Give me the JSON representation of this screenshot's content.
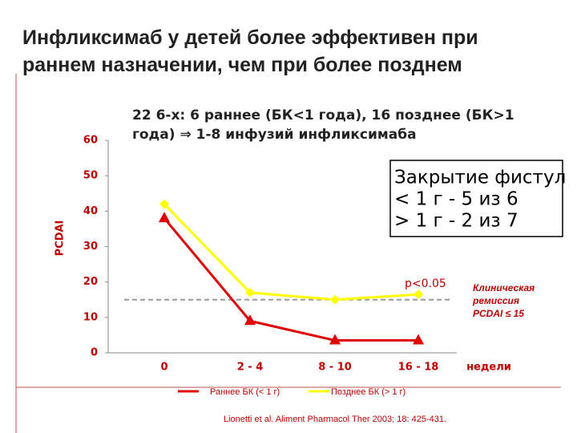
{
  "title": "Инфликсимаб у детей более эффективен при раннем назначении, чем при более позднем",
  "chart_data": {
    "type": "line",
    "subtitle": [
      "22 6-х: 6 раннее (БК<1 года), 16 позднее (БК>1",
      "года) ⇒ 1-8 инфузий инфликсимаба"
    ],
    "box_text": [
      "Закрытие фистул",
      "< 1 г  - 5 из 6",
      "> 1 г  - 2 из 7"
    ],
    "annotation": "p<0.05",
    "threshold_note": [
      "Клиническая",
      "ремиссия",
      "PCDAI ≤ 15"
    ],
    "threshold": 15,
    "y_label": "PCDAI",
    "x_label": "недели",
    "categories": [
      "0",
      "2 - 4",
      "8 - 10",
      "16 - 18"
    ],
    "series": [
      {
        "name": "Раннее БК (< 1 г)",
        "color": "#e00000",
        "values": [
          38,
          9,
          3.5,
          3.5
        ]
      },
      {
        "name": "Позднее БК (> 1 г)",
        "color": "#ffff00",
        "values": [
          42,
          17,
          15,
          16.5
        ]
      }
    ],
    "ylim": [
      0,
      60
    ],
    "yticks": [
      0,
      10,
      20,
      30,
      40,
      50,
      60
    ],
    "grid": false,
    "source": "Lionetti et al. Aliment Pharmacol Ther 2003; 18: 425-431."
  }
}
